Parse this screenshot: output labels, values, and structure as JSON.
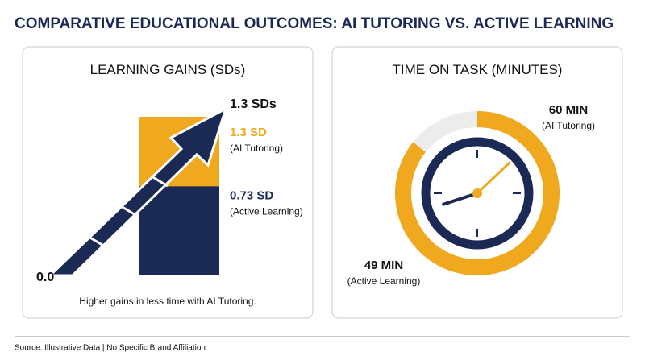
{
  "title": "COMPARATIVE EDUCATIONAL OUTCOMES: AI TUTORING VS. ACTIVE LEARNING",
  "source": "Source: Illustrative Data | No Specific Brand Affiliation",
  "chart_data": [
    {
      "type": "bar",
      "title": "LEARNING GAINS",
      "unit": "(SDs)",
      "series": [
        {
          "name": "(AI Tutoring)",
          "color": "#f0a81e",
          "values": [
            1.3
          ],
          "value_labels": [
            "1.3 SD"
          ]
        },
        {
          "name": "(Active Learning)",
          "color": "#1b2a55",
          "values": [
            0.73
          ],
          "value_labels": [
            "0.73 SD"
          ]
        }
      ],
      "ylim": [
        0,
        1.3
      ],
      "yticks": [
        {
          "value": 0,
          "label": "0.0"
        },
        {
          "value": 1.3,
          "label": "1.3 SDs"
        }
      ],
      "note": "Higher gains in less time with AI Tutoring."
    },
    {
      "type": "clock",
      "title": "TIME ON TASK",
      "unit": "(MINUTES)",
      "series": [
        {
          "name": "(AI Tutoring)",
          "color": "#f0a81e",
          "values": [
            60
          ],
          "value_labels": [
            "60 MIN"
          ]
        },
        {
          "name": "(Active Learning)",
          "color": "#1b2a55",
          "values": [
            49
          ],
          "value_labels": [
            "49 MIN"
          ]
        }
      ],
      "rlim": [
        0,
        70
      ]
    }
  ]
}
